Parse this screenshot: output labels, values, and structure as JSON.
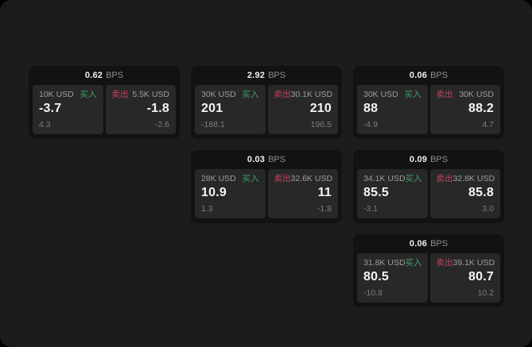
{
  "labels": {
    "bps_unit": "BPS",
    "buy": "买入",
    "sell": "卖出"
  },
  "colors": {
    "background": "#000000",
    "panel_bg": "#1c1c1d",
    "card_bg": "#121213",
    "tile_bg": "#282828",
    "buy_green": "#3fa266",
    "sell_red": "#c4445c",
    "text_primary": "#f4f4f4",
    "text_secondary": "#9d9d9d",
    "text_muted": "#7d7d7d"
  },
  "cards": [
    {
      "bps": "0.62",
      "buy": {
        "size": "10K USD",
        "value": "-3.7",
        "delta": "4.3"
      },
      "sell": {
        "size": "5.5K USD",
        "value": "-1.8",
        "delta": "-2.6"
      }
    },
    {
      "bps": "2.92",
      "buy": {
        "size": "30K USD",
        "value": "201",
        "delta": "-188.1"
      },
      "sell": {
        "size": "30.1K USD",
        "value": "210",
        "delta": "196.5"
      }
    },
    {
      "bps": "0.06",
      "buy": {
        "size": "30K USD",
        "value": "88",
        "delta": "-4.9"
      },
      "sell": {
        "size": "30K USD",
        "value": "88.2",
        "delta": "4.7"
      }
    },
    {
      "bps": "0.03",
      "buy": {
        "size": "28K USD",
        "value": "10.9",
        "delta": "1.3"
      },
      "sell": {
        "size": "32.6K USD",
        "value": "11",
        "delta": "-1.8"
      }
    },
    {
      "bps": "0.09",
      "buy": {
        "size": "34.1K USD",
        "value": "85.5",
        "delta": "-3.1"
      },
      "sell": {
        "size": "32.8K USD",
        "value": "85.8",
        "delta": "3.0"
      }
    },
    {
      "bps": "0.06",
      "buy": {
        "size": "31.8K USD",
        "value": "80.5",
        "delta": "-10.8"
      },
      "sell": {
        "size": "39.1K USD",
        "value": "80.7",
        "delta": "10.2"
      }
    }
  ]
}
